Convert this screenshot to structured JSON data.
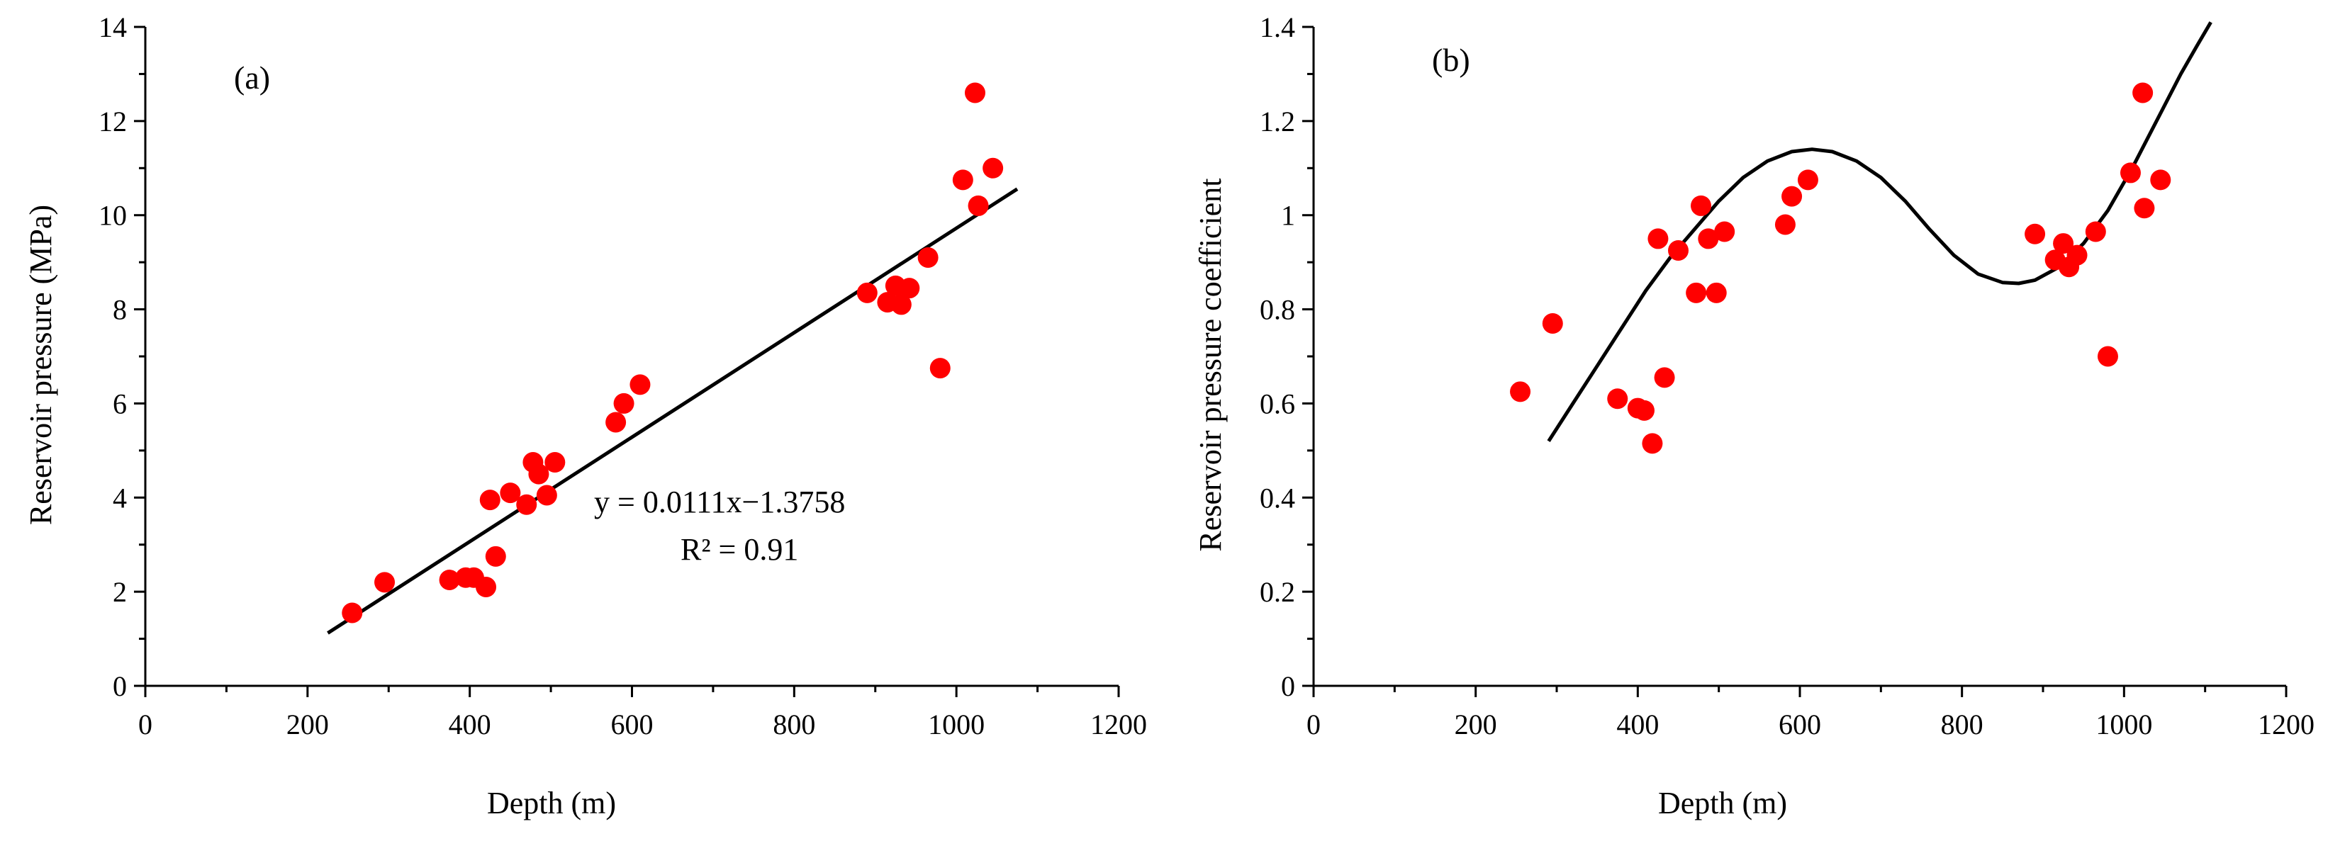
{
  "chart_data": [
    {
      "id": "a",
      "type": "scatter",
      "panel_label": "(a)",
      "xlabel": "Depth (m)",
      "ylabel": "Reservoir pressure (MPa)",
      "xlim": [
        0,
        1200
      ],
      "ylim": [
        0,
        14
      ],
      "xticks": [
        0,
        200,
        400,
        600,
        800,
        1000,
        1200
      ],
      "yticks": [
        0,
        2,
        4,
        6,
        8,
        10,
        12,
        14
      ],
      "marker_color": "#ff0000",
      "points": [
        [
          255,
          1.55
        ],
        [
          295,
          2.2
        ],
        [
          375,
          2.25
        ],
        [
          395,
          2.3
        ],
        [
          405,
          2.3
        ],
        [
          420,
          2.1
        ],
        [
          425,
          3.95
        ],
        [
          432,
          2.75
        ],
        [
          450,
          4.1
        ],
        [
          470,
          3.85
        ],
        [
          478,
          4.75
        ],
        [
          485,
          4.5
        ],
        [
          495,
          4.05
        ],
        [
          505,
          4.75
        ],
        [
          580,
          5.6
        ],
        [
          590,
          6.0
        ],
        [
          610,
          6.4
        ],
        [
          890,
          8.35
        ],
        [
          915,
          8.15
        ],
        [
          925,
          8.5
        ],
        [
          932,
          8.1
        ],
        [
          942,
          8.45
        ],
        [
          965,
          9.1
        ],
        [
          980,
          6.75
        ],
        [
          1008,
          10.75
        ],
        [
          1023,
          12.6
        ],
        [
          1027,
          10.2
        ],
        [
          1045,
          11.0
        ]
      ],
      "fit": {
        "kind": "linear",
        "slope": 0.0111,
        "intercept": -1.3758,
        "x_range": [
          225,
          1075
        ],
        "equation": "y = 0.0111x−1.3758",
        "r2_label": "R² = 0.91"
      }
    },
    {
      "id": "b",
      "type": "scatter",
      "panel_label": "(b)",
      "xlabel": "Depth (m)",
      "ylabel": "Reservoir pressure coefficient",
      "xlim": [
        0,
        1200
      ],
      "ylim": [
        0,
        1.4
      ],
      "xticks": [
        0,
        200,
        400,
        600,
        800,
        1000,
        1200
      ],
      "yticks": [
        0,
        0.2,
        0.4,
        0.6,
        0.8,
        1,
        1.2,
        1.4
      ],
      "ytick_labels": [
        "0",
        "0.2",
        "0.4",
        "0.6",
        "0.8",
        "1",
        "1.2",
        "1.4"
      ],
      "marker_color": "#ff0000",
      "points": [
        [
          255,
          0.625
        ],
        [
          295,
          0.77
        ],
        [
          375,
          0.61
        ],
        [
          400,
          0.59
        ],
        [
          408,
          0.585
        ],
        [
          418,
          0.515
        ],
        [
          425,
          0.95
        ],
        [
          433,
          0.655
        ],
        [
          450,
          0.925
        ],
        [
          472,
          0.835
        ],
        [
          478,
          1.02
        ],
        [
          487,
          0.95
        ],
        [
          497,
          0.835
        ],
        [
          507,
          0.965
        ],
        [
          582,
          0.98
        ],
        [
          590,
          1.04
        ],
        [
          610,
          1.075
        ],
        [
          890,
          0.96
        ],
        [
          915,
          0.905
        ],
        [
          925,
          0.94
        ],
        [
          932,
          0.89
        ],
        [
          942,
          0.915
        ],
        [
          965,
          0.965
        ],
        [
          980,
          0.7
        ],
        [
          1008,
          1.09
        ],
        [
          1023,
          1.26
        ],
        [
          1025,
          1.015
        ],
        [
          1045,
          1.075
        ]
      ],
      "fit": {
        "kind": "curve",
        "curve_points": [
          [
            290,
            0.52
          ],
          [
            320,
            0.6
          ],
          [
            350,
            0.68
          ],
          [
            380,
            0.76
          ],
          [
            410,
            0.84
          ],
          [
            440,
            0.91
          ],
          [
            470,
            0.97
          ],
          [
            500,
            1.03
          ],
          [
            530,
            1.08
          ],
          [
            560,
            1.115
          ],
          [
            590,
            1.135
          ],
          [
            615,
            1.14
          ],
          [
            640,
            1.135
          ],
          [
            670,
            1.115
          ],
          [
            700,
            1.08
          ],
          [
            730,
            1.03
          ],
          [
            760,
            0.97
          ],
          [
            790,
            0.915
          ],
          [
            820,
            0.875
          ],
          [
            850,
            0.857
          ],
          [
            870,
            0.855
          ],
          [
            890,
            0.862
          ],
          [
            920,
            0.89
          ],
          [
            950,
            0.94
          ],
          [
            980,
            1.01
          ],
          [
            1010,
            1.1
          ],
          [
            1040,
            1.2
          ],
          [
            1070,
            1.3
          ],
          [
            1090,
            1.36
          ],
          [
            1107,
            1.41
          ]
        ]
      }
    }
  ]
}
